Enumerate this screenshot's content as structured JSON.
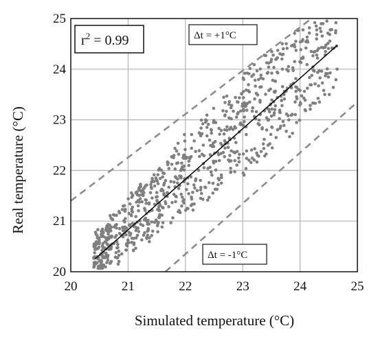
{
  "chart_data": {
    "type": "scatter",
    "title": "",
    "xlabel": "Simulated temperature (°C)",
    "ylabel": "Real temperature (°C)",
    "xlim": [
      20,
      25
    ],
    "ylim": [
      20,
      25
    ],
    "x_ticks": [
      "20",
      "21",
      "22",
      "23",
      "24",
      "25"
    ],
    "y_ticks": [
      "20",
      "21",
      "22",
      "23",
      "24",
      "25"
    ],
    "grid": true,
    "annotations": {
      "r2": "r",
      "r2_sup": "2",
      "r2_value": " = 0.99",
      "upper_band": "Δt = +1°C",
      "lower_band": "Δt = -1°C"
    },
    "fit_line": {
      "x": [
        20.42,
        24.65
      ],
      "y": [
        20.25,
        24.47
      ]
    },
    "upper_band_line": {
      "x": [
        20.0,
        24.2
      ],
      "y": [
        21.4,
        25.0
      ]
    },
    "lower_band_line": {
      "x": [
        21.65,
        25.0
      ],
      "y": [
        20.0,
        23.35
      ]
    },
    "cloud": {
      "x_range": [
        20.4,
        24.65
      ],
      "center_slope": 1.0,
      "center_intercept": -0.1,
      "spread": 0.95,
      "point_count": 900
    },
    "colors": {
      "points": "#7f7f7f",
      "bands": "#8c8c8c",
      "fit": "#000000",
      "grid": "#b3b3b3"
    }
  }
}
